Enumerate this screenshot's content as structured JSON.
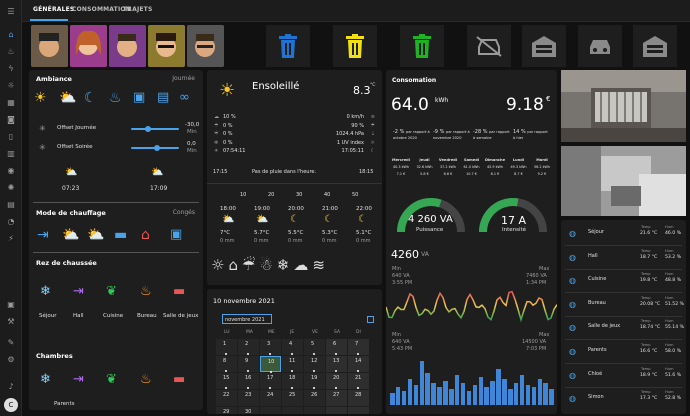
{
  "tabs": [
    "GÉNÉRALES",
    "CONSOMMATION",
    "TRAJETS"
  ],
  "ambiance": {
    "title": "Ambiance",
    "mode": "Journée",
    "offset_day_label": "Offset Journée",
    "offset_day_value": "-30,0",
    "offset_day_unit": "Min",
    "offset_evening_label": "Offset Soirée",
    "offset_evening_value": "0,0",
    "offset_evening_unit": "Min",
    "offset_day_level": 0.35,
    "offset_evening_level": 0.55,
    "sunrise": "07:23",
    "sunset": "17:09"
  },
  "heating": {
    "title": "Mode de chauffage",
    "mode": "Congés"
  },
  "rez": {
    "title": "Rez de chaussée",
    "rooms": [
      "Séjour",
      "Hall",
      "Cuisine",
      "Bureau",
      "Salle de jeux"
    ]
  },
  "chambres": {
    "title": "Chambres",
    "rooms": [
      "Parents"
    ]
  },
  "weather": {
    "condition": "Ensoleillé",
    "temp": "8.3",
    "temp_unit": "°C",
    "left": [
      "10 %",
      "0 %",
      "0 %",
      "0 %",
      "07:54:11"
    ],
    "right": [
      "0 km/h",
      "90 %",
      "1024.4 hPa",
      "1 UV index",
      "17:05:11"
    ],
    "time_start": "17:15",
    "rain_text": "Pas de pluie dans l'heure.",
    "time_end": "18:15",
    "scale": [
      "10",
      "20",
      "30",
      "40",
      "50"
    ],
    "forecast": [
      {
        "time": "18:00",
        "temp": "7°C",
        "rain": "0 mm"
      },
      {
        "time": "19:00",
        "temp": "5.7°C",
        "rain": "0 mm"
      },
      {
        "time": "20:00",
        "temp": "5.5°C",
        "rain": "0 mm"
      },
      {
        "time": "21:00",
        "temp": "5.3°C",
        "rain": "0 mm"
      },
      {
        "time": "22:00",
        "temp": "5.1°C",
        "rain": "0 mm"
      }
    ]
  },
  "calendar": {
    "date_title": "10 novembre 2021",
    "month_label": "novembre 2021",
    "weekdays": [
      "LU",
      "MA",
      "ME",
      "JE",
      "VE",
      "SA",
      "DI"
    ],
    "weeks": [
      [
        "1",
        "2",
        "3",
        "4",
        "5",
        "6",
        "7"
      ],
      [
        "8",
        "9",
        "10",
        "11",
        "12",
        "13",
        "14"
      ],
      [
        "15",
        "16",
        "17",
        "18",
        "19",
        "20",
        "21"
      ],
      [
        "22",
        "23",
        "24",
        "25",
        "26",
        "27",
        "28"
      ],
      [
        "29",
        "30",
        "",
        "",
        "",
        "",
        ""
      ]
    ]
  },
  "conso": {
    "title": "Consomation",
    "kwh": "64.0",
    "kwh_unit": "kWh",
    "eur": "9.18",
    "eur_unit": "€",
    "cmp": [
      {
        "val": "-2 %",
        "txt": "par rapport à octobre 2020"
      },
      {
        "val": "-9 %",
        "txt": "par rapport à novembre 2020"
      },
      {
        "val": "-28 %",
        "txt": "par rapport à semaine"
      },
      {
        "val": "14 %",
        "txt": "par rapport à hier"
      }
    ],
    "days": [
      {
        "d": "Mercredi",
        "k": "40.3 kWh",
        "e": "7.1 €"
      },
      {
        "d": "Jeudi",
        "k": "32.6 kWh",
        "e": "5.8 €"
      },
      {
        "d": "Vendredi",
        "k": "37.2 kWh",
        "e": "6.6 €"
      },
      {
        "d": "Samedi",
        "k": "61.0 kWh",
        "e": "10.7 €"
      },
      {
        "d": "Dimanche",
        "k": "45.9 kWh",
        "e": "8.1 €"
      },
      {
        "d": "Lundi",
        "k": "49.3 kWh",
        "e": "8.7 €"
      },
      {
        "d": "Mardi",
        "k": "56.2 kWh",
        "e": "9.2 €"
      }
    ],
    "power": "4 260 VA",
    "power_label": "Puissance",
    "intensity": "17 A",
    "intensity_label": "Intensité",
    "power_level": 0.6,
    "intensity_level": 0.55,
    "graph_value": "4260",
    "graph_unit": "VA",
    "g1_min": "Min",
    "g1_min_v": "640 VA",
    "g1_min_t": "3:55 PM",
    "g1_max": "Max",
    "g1_max_v": "7460 VA",
    "g1_max_t": "1:34 PM",
    "g2_min": "Min",
    "g2_min_v": "640 VA",
    "g2_min_t": "5:43 PM",
    "g2_max": "Max",
    "g2_max_v": "14500 VA",
    "g2_max_t": "7:03 PM"
  },
  "sensors": {
    "temp_label": "Temp",
    "hum_label": "Hum",
    "rows": [
      {
        "name": "Séjour",
        "t": "21.6 °C",
        "h": "46.0 %"
      },
      {
        "name": "Hall",
        "t": "18.7 °C",
        "h": "53.2 %"
      },
      {
        "name": "Cuisine",
        "t": "19.8 °C",
        "h": "48.8 %"
      },
      {
        "name": "Bureau",
        "t": "20.08 °C",
        "h": "51.52 %"
      },
      {
        "name": "Salle de jeux",
        "t": "18.74 °C",
        "h": "55.14 %"
      },
      {
        "name": "Parents",
        "t": "16.6 °C",
        "h": "58.0 %"
      },
      {
        "name": "Chloé",
        "t": "18.9 °C",
        "h": "51.6 %"
      },
      {
        "name": "Simon",
        "t": "17.3 °C",
        "h": "52.8 %"
      }
    ]
  },
  "user_initial": "C",
  "colors": {
    "accent": "#4aa3e8",
    "sun": "#f7c52b",
    "bins": [
      "#1f74d2",
      "#f2e014",
      "#1fb324"
    ],
    "heat": "#e55656",
    "leaf": "#34c759",
    "snow": "#7fd3ff",
    "flame": "#ff9f1c",
    "orange": "#f29b38"
  }
}
